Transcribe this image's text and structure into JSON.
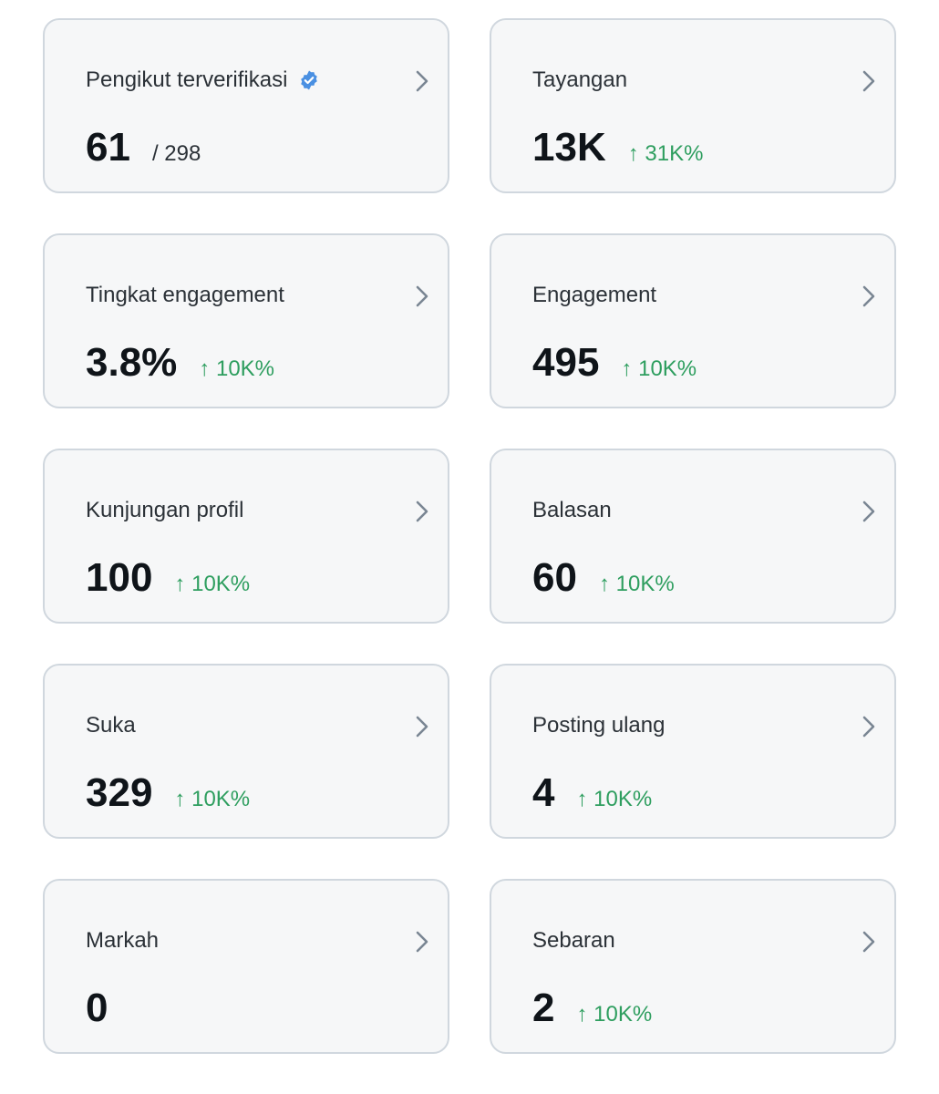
{
  "colors": {
    "card_background": "#f6f7f8",
    "card_border": "#d0d7de",
    "value_text": "#0f1419",
    "label_text": "#2b3137",
    "positive_change": "#2e9e5f",
    "verified_badge": "#4a90e2",
    "chevron": "#7a8693"
  },
  "cards": [
    {
      "title": "Pengikut terverifikasi",
      "title_icon": "verified-badge-icon",
      "value": "61",
      "sub": "/ 298",
      "change": ""
    },
    {
      "title": "Tayangan",
      "value": "13K",
      "sub": "",
      "change": "↑ 31K%"
    },
    {
      "title": "Tingkat engagement",
      "value": "3.8%",
      "sub": "",
      "change": "↑ 10K%"
    },
    {
      "title": "Engagement",
      "value": "495",
      "sub": "",
      "change": "↑ 10K%"
    },
    {
      "title": "Kunjungan profil",
      "value": "100",
      "sub": "",
      "change": "↑ 10K%"
    },
    {
      "title": "Balasan",
      "value": "60",
      "sub": "",
      "change": "↑ 10K%"
    },
    {
      "title": "Suka",
      "value": "329",
      "sub": "",
      "change": "↑ 10K%"
    },
    {
      "title": "Posting ulang",
      "value": "4",
      "sub": "",
      "change": "↑ 10K%"
    },
    {
      "title": "Markah",
      "value": "0",
      "sub": "",
      "change": ""
    },
    {
      "title": "Sebaran",
      "value": "2",
      "sub": "",
      "change": "↑ 10K%"
    }
  ]
}
